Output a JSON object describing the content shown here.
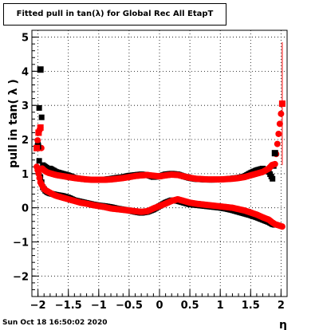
{
  "title": "Fitted pull in tan(λ) for Global Rec All EtapT",
  "footer": "Sun Oct 18 16:50:02 2020",
  "chart_data": {
    "type": "scatter",
    "title": "Fitted pull in tan(λ) for Global Rec All EtapT",
    "xlabel": "η",
    "ylabel": "pull in tan( λ )",
    "xlim": [
      -2.1,
      2.1
    ],
    "ylim": [
      -2.6,
      5.2
    ],
    "grid": true,
    "xticks": [
      -2,
      -1.5,
      -1,
      -0.5,
      0,
      0.5,
      1,
      1.5,
      2
    ],
    "xtick_labels": [
      "−2",
      "−1.5",
      "−1",
      "−0.5",
      "0",
      "0.5",
      "1",
      "1.5",
      "2"
    ],
    "yticks": [
      -2,
      -1,
      0,
      1,
      2,
      3,
      4,
      5
    ],
    "ytick_labels": [
      "−2",
      "−1",
      "0",
      "1",
      "2",
      "3",
      "4",
      "5"
    ],
    "colors": {
      "series_black": "#000000",
      "series_red": "#ff0000"
    },
    "series": [
      {
        "name": "",
        "color": "#000000",
        "x": [
          -2.0,
          -1.96,
          -1.92,
          -1.88,
          -1.84,
          -1.8,
          -1.7,
          -1.6,
          -1.5,
          -1.4,
          -1.3,
          -1.2,
          -1.1,
          -1.0,
          -0.9,
          -0.8,
          -0.7,
          -0.6,
          -0.5,
          -0.4,
          -0.3,
          -0.2,
          -0.1,
          0.0,
          0.1,
          0.2,
          0.3,
          0.4,
          0.5,
          0.6,
          0.7,
          0.8,
          0.9,
          1.0,
          1.1,
          1.2,
          1.3,
          1.4,
          1.5,
          1.6,
          1.7,
          1.8,
          1.86,
          1.9
        ],
        "mean": [
          1.8,
          4.05,
          1.25,
          1.2,
          1.15,
          1.15,
          1.05,
          1.0,
          0.95,
          0.88,
          0.85,
          0.83,
          0.82,
          0.82,
          0.83,
          0.85,
          0.88,
          0.9,
          0.94,
          0.96,
          0.98,
          0.96,
          0.9,
          0.92,
          0.98,
          1.0,
          0.98,
          0.92,
          0.87,
          0.84,
          0.83,
          0.82,
          0.82,
          0.83,
          0.84,
          0.86,
          0.88,
          0.92,
          1.02,
          1.1,
          1.15,
          1.05,
          0.85,
          1.6
        ],
        "sigma": [
          1.85,
          0.9,
          0.6,
          0.5,
          0.45,
          0.42,
          0.38,
          0.35,
          0.3,
          0.22,
          0.18,
          0.14,
          0.1,
          0.07,
          0.05,
          0.02,
          -0.02,
          -0.05,
          -0.08,
          -0.12,
          -0.15,
          -0.12,
          -0.05,
          0.05,
          0.15,
          0.22,
          0.2,
          0.15,
          0.1,
          0.08,
          0.06,
          0.04,
          0.02,
          0.0,
          -0.03,
          -0.07,
          -0.12,
          -0.17,
          -0.22,
          -0.28,
          -0.35,
          -0.42,
          -0.48,
          -0.5
        ]
      },
      {
        "name": "",
        "color": "#ff0000",
        "x": [
          -2.02,
          -1.99,
          -1.96,
          -1.93,
          -1.9,
          -1.86,
          -1.82,
          -1.78,
          -1.74,
          -1.7,
          -1.6,
          -1.5,
          -1.4,
          -1.3,
          -1.2,
          -1.1,
          -1.0,
          -0.9,
          -0.8,
          -0.7,
          -0.6,
          -0.5,
          -0.4,
          -0.3,
          -0.2,
          -0.1,
          0.0,
          0.1,
          0.2,
          0.3,
          0.4,
          0.5,
          0.6,
          0.7,
          0.8,
          0.9,
          1.0,
          1.1,
          1.2,
          1.3,
          1.4,
          1.5,
          1.6,
          1.7,
          1.8,
          1.85,
          1.9,
          2.02
        ],
        "mean": [
          1.75,
          2.2,
          2.35,
          1.15,
          1.1,
          1.05,
          1.02,
          1.0,
          0.98,
          0.96,
          0.93,
          0.9,
          0.87,
          0.85,
          0.83,
          0.82,
          0.82,
          0.82,
          0.83,
          0.85,
          0.87,
          0.9,
          0.93,
          0.95,
          0.96,
          0.94,
          0.92,
          0.95,
          0.97,
          0.96,
          0.92,
          0.88,
          0.85,
          0.84,
          0.83,
          0.83,
          0.83,
          0.84,
          0.85,
          0.87,
          0.9,
          0.95,
          1.0,
          1.05,
          1.15,
          1.25,
          1.28,
          3.05
        ],
        "mean_err": [
          0.0,
          0.0,
          0.0,
          0.0,
          0.0,
          0.0,
          0.0,
          0.0,
          0.0,
          0.0,
          0.0,
          0.0,
          0.0,
          0.0,
          0.0,
          0.0,
          0.0,
          0.0,
          0.0,
          0.0,
          0.0,
          0.0,
          0.0,
          0.0,
          0.0,
          0.0,
          0.0,
          0.0,
          0.0,
          0.0,
          0.0,
          0.0,
          0.0,
          0.0,
          0.0,
          0.0,
          0.0,
          0.0,
          0.0,
          0.0,
          0.0,
          0.0,
          0.0,
          0.0,
          0.0,
          0.0,
          0.0,
          1.8
        ],
        "sigma": [
          1.2,
          1.0,
          0.75,
          0.65,
          0.55,
          0.5,
          0.46,
          0.42,
          0.38,
          0.35,
          0.3,
          0.25,
          0.2,
          0.15,
          0.12,
          0.08,
          0.05,
          0.02,
          -0.02,
          -0.04,
          -0.06,
          -0.08,
          -0.1,
          -0.12,
          -0.1,
          -0.02,
          0.05,
          0.12,
          0.2,
          0.25,
          0.2,
          0.15,
          0.12,
          0.1,
          0.08,
          0.06,
          0.04,
          0.02,
          0.0,
          -0.04,
          -0.08,
          -0.14,
          -0.2,
          -0.28,
          -0.35,
          -0.42,
          -0.48,
          -0.55
        ]
      }
    ]
  }
}
